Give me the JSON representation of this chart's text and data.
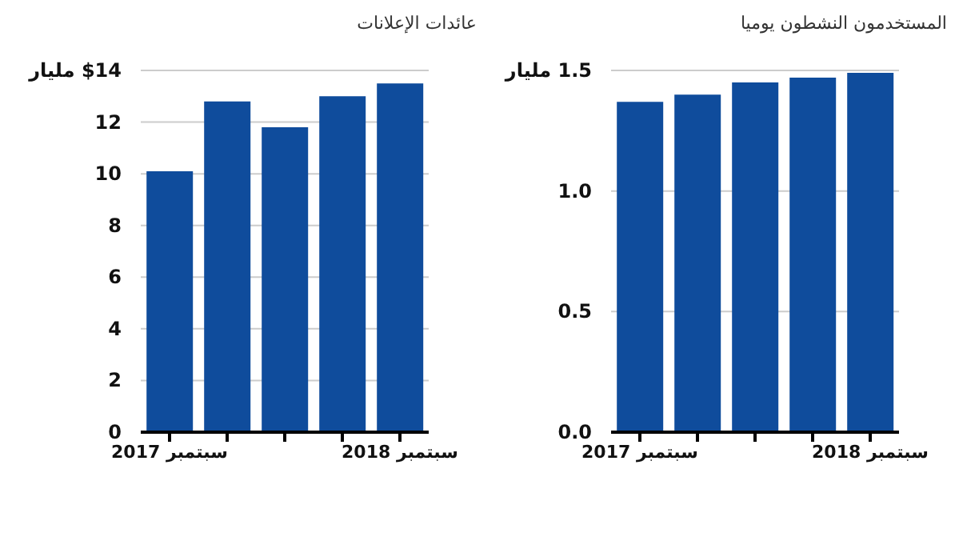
{
  "chart_data": [
    {
      "type": "bar",
      "title": "عائدات الإعلانات",
      "categories": [
        "سبتمبر 2017",
        null,
        null,
        null,
        "سبتمبر 2018"
      ],
      "values": [
        10.1,
        12.8,
        11.8,
        13.0,
        13.5
      ],
      "color": "#0f4c9c",
      "ylim": [
        0,
        14
      ],
      "yticks": [
        0,
        2,
        4,
        6,
        8,
        10,
        12,
        {
          "value": 14,
          "label": "$14 مليار"
        }
      ],
      "grid": "y"
    },
    {
      "type": "bar",
      "title": "المستخدمون النشطون يوميا",
      "categories": [
        "سبتمبر 2017",
        null,
        null,
        null,
        "سبتمبر 2018"
      ],
      "values": [
        1.37,
        1.4,
        1.45,
        1.47,
        1.49
      ],
      "color": "#0f4c9c",
      "ylim": [
        0,
        1.5
      ],
      "yticks": [
        {
          "value": 0,
          "label": "0.0"
        },
        {
          "value": 0.5,
          "label": "0.5"
        },
        {
          "value": 1,
          "label": "1.0"
        },
        {
          "value": 1.5,
          "label": "1.5 مليار"
        }
      ],
      "grid": "y"
    }
  ]
}
